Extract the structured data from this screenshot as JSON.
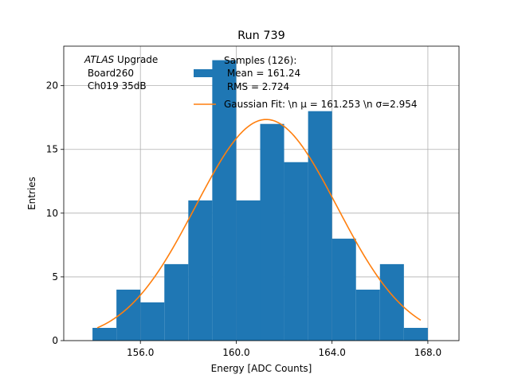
{
  "chart_data": {
    "type": "bar",
    "title": "Run 739",
    "xlabel": "Energy [ADC Counts]",
    "ylabel": "Entries",
    "xlim": [
      152.8,
      169.3
    ],
    "ylim": [
      0,
      23.1
    ],
    "grid": true,
    "x_ticks": [
      156.0,
      160.0,
      164.0,
      168.0
    ],
    "x_tick_labels": [
      "156.0",
      "160.0",
      "164.0",
      "168.0"
    ],
    "y_ticks": [
      0,
      5,
      10,
      15,
      20
    ],
    "y_tick_labels": [
      "0",
      "5",
      "10",
      "15",
      "20"
    ],
    "bin_edges": [
      154.0,
      155.0,
      156.0,
      157.0,
      158.0,
      159.0,
      160.0,
      161.0,
      162.0,
      163.0,
      164.0,
      165.0,
      166.0,
      167.0,
      168.0
    ],
    "counts": [
      1,
      4,
      3,
      6,
      11,
      22,
      11,
      17,
      14,
      18,
      8,
      4,
      6,
      1
    ],
    "hist_color": "#1f77b4",
    "fit": {
      "mu": 161.253,
      "sigma": 2.954,
      "amplitude": 17.35,
      "x_range": [
        154.2,
        167.7
      ],
      "color": "#ff7f0e"
    },
    "legend": {
      "position": "top-right",
      "hist_label_lines": [
        "Samples (126):",
        " Mean = 161.24",
        " RMS = 2.724"
      ],
      "fit_label": "Gaussian Fit: \\n μ = 161.253 \\n σ=2.954"
    },
    "annotation": {
      "atlas_word": "ATLAS",
      "atlas_suffix": " Upgrade",
      "line2": " Board260",
      "line3": " Ch019 35dB"
    }
  }
}
